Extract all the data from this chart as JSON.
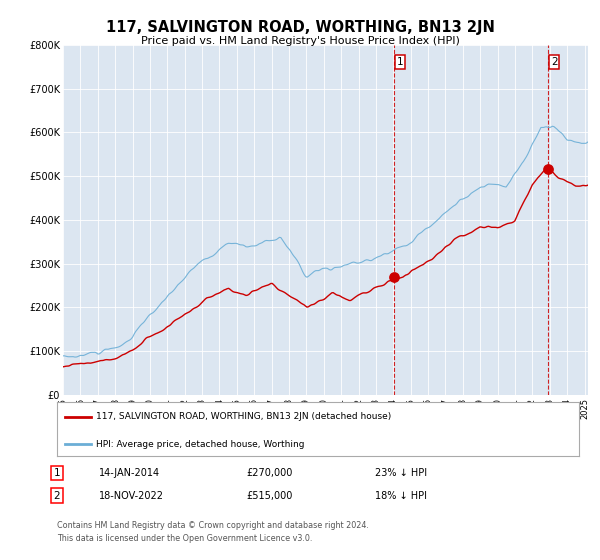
{
  "title": "117, SALVINGTON ROAD, WORTHING, BN13 2JN",
  "subtitle": "Price paid vs. HM Land Registry's House Price Index (HPI)",
  "legend_line1": "117, SALVINGTON ROAD, WORTHING, BN13 2JN (detached house)",
  "legend_line2": "HPI: Average price, detached house, Worthing",
  "annotation1_date": "14-JAN-2014",
  "annotation1_price": 270000,
  "annotation1_pct": "23% ↓ HPI",
  "annotation2_date": "18-NOV-2022",
  "annotation2_price": 515000,
  "annotation2_pct": "18% ↓ HPI",
  "footer1": "Contains HM Land Registry data © Crown copyright and database right 2024.",
  "footer2": "This data is licensed under the Open Government Licence v3.0.",
  "sale1_year": 2014.04,
  "sale2_year": 2022.88,
  "hpi_color": "#6baed6",
  "price_color": "#cc0000",
  "bg_color": "#dce6f1",
  "ylim": [
    0,
    800000
  ],
  "yticks": [
    0,
    100000,
    200000,
    300000,
    400000,
    500000,
    600000,
    700000,
    800000
  ],
  "ytick_labels": [
    "£0",
    "£100K",
    "£200K",
    "£300K",
    "£400K",
    "£500K",
    "£600K",
    "£700K",
    "£800K"
  ]
}
